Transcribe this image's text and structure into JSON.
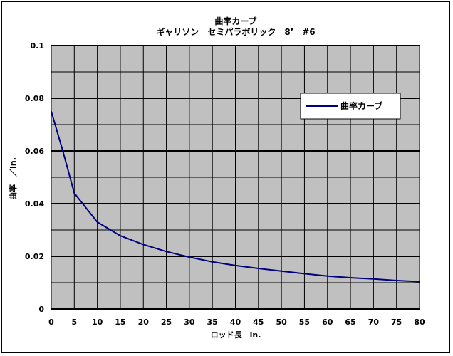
{
  "chart_data": {
    "type": "line",
    "title": "曲率カーブ",
    "subtitle": "ギャリソン　セミパラボリック　8’　#6",
    "xlabel": "ロッド長　in.",
    "ylabel": "曲率　／in.",
    "xlim": [
      0,
      80
    ],
    "ylim": [
      0,
      0.1
    ],
    "x_ticks": [
      "0",
      "5",
      "10",
      "15",
      "20",
      "25",
      "30",
      "35",
      "40",
      "45",
      "50",
      "55",
      "60",
      "65",
      "70",
      "75",
      "80"
    ],
    "y_ticks": [
      "0",
      "0.02",
      "0.04",
      "0.06",
      "0.08",
      "0.1"
    ],
    "grid": true,
    "legend_position": "top-right",
    "series": [
      {
        "name": "曲率カーブ",
        "color": "#000080",
        "x": [
          0,
          2.5,
          5,
          10,
          15,
          20,
          25,
          30,
          35,
          40,
          45,
          50,
          55,
          60,
          65,
          70,
          75,
          80
        ],
        "y": [
          0.075,
          0.06,
          0.044,
          0.033,
          0.0278,
          0.0245,
          0.0218,
          0.0197,
          0.0179,
          0.0165,
          0.0154,
          0.0144,
          0.0134,
          0.0125,
          0.0119,
          0.0114,
          0.0108,
          0.0104
        ]
      }
    ],
    "colors": {
      "plot_background": "#c0c0c0",
      "major_grid": "#000000",
      "minor_grid": "#000000"
    }
  }
}
